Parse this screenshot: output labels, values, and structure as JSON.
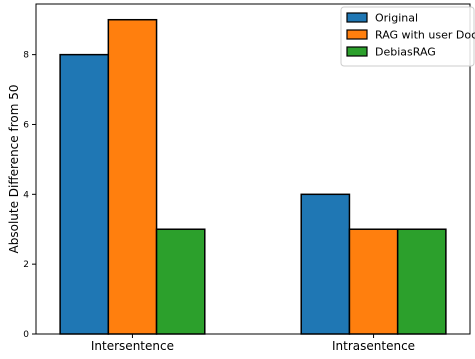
{
  "chart_data": {
    "type": "bar",
    "title": "",
    "xlabel": "",
    "ylabel": "Absolute Difference from 50",
    "categories": [
      "Intersentence",
      "Intrasentence"
    ],
    "series": [
      {
        "name": "Original",
        "color": "#1f77b4",
        "values": [
          8,
          4
        ]
      },
      {
        "name": "RAG with user Doc",
        "color": "#ff7f0e",
        "values": [
          9,
          3
        ]
      },
      {
        "name": "DebiasRAG",
        "color": "#2ca02c",
        "values": [
          3,
          3
        ]
      }
    ],
    "ylim": [
      0,
      9.45
    ],
    "yticks": [
      0,
      2,
      4,
      6,
      8
    ],
    "grid": false,
    "legend_position": "top-right",
    "bar_edge_color": "#000000"
  }
}
